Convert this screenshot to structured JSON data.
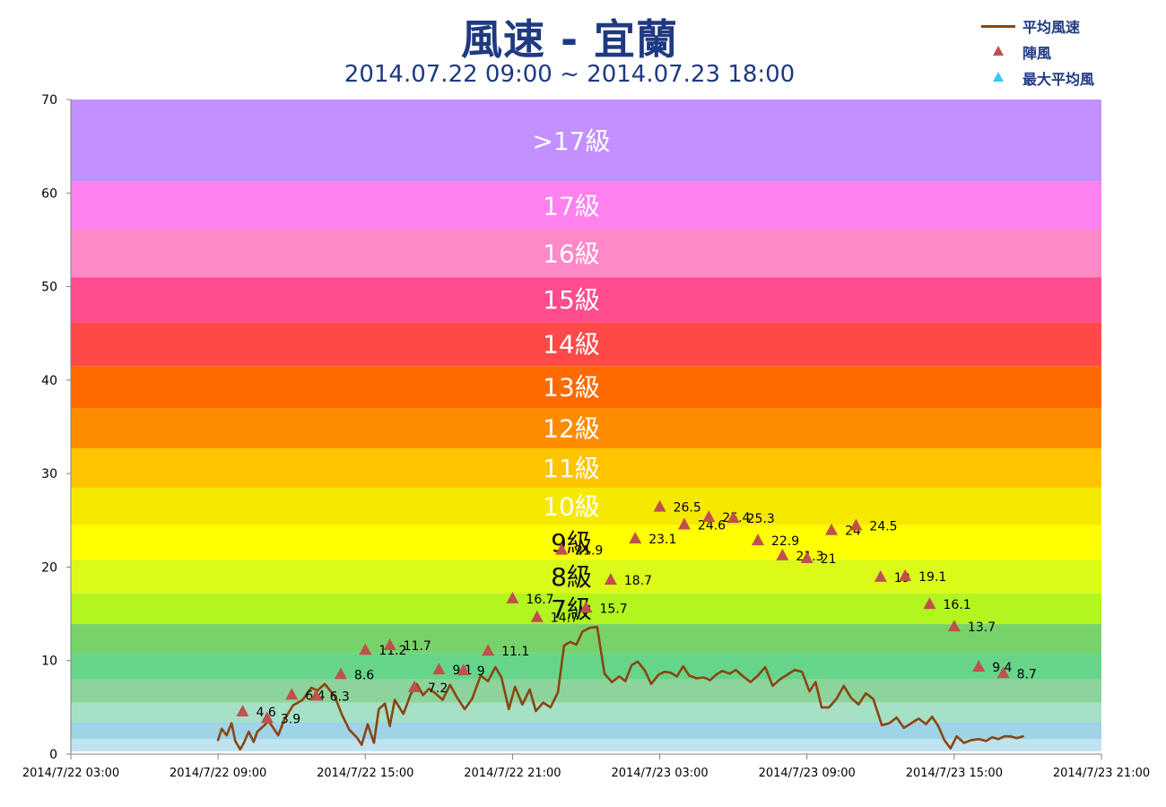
{
  "page": {
    "title": "風速 - 宜蘭",
    "subtitle": "2014.07.22 09:00 ~ 2014.07.23 18:00"
  },
  "legend": {
    "items": [
      {
        "label": "平均風速",
        "type": "line"
      },
      {
        "label": "陣風",
        "type": "triangle"
      },
      {
        "label": "最大平均風",
        "type": "triangle-cyan"
      }
    ]
  },
  "colors": {
    "avg_line": "#8b4513",
    "gust_marker": "#c0504d",
    "max_avg_marker": "#33ccee",
    "title": "#1f3a82"
  },
  "chart_data": {
    "type": "line",
    "x_axis": {
      "start_hour": 0,
      "end_hour": 42,
      "ticks": [
        {
          "hour": 0,
          "label": "2014/7/22 03:00"
        },
        {
          "hour": 6,
          "label": "2014/7/22 09:00"
        },
        {
          "hour": 12,
          "label": "2014/7/22 15:00"
        },
        {
          "hour": 18,
          "label": "2014/7/22 21:00"
        },
        {
          "hour": 24,
          "label": "2014/7/23 03:00"
        },
        {
          "hour": 30,
          "label": "2014/7/23 09:00"
        },
        {
          "hour": 36,
          "label": "2014/7/23 15:00"
        },
        {
          "hour": 42,
          "label": "2014/7/23 21:00"
        }
      ]
    },
    "y_axis": {
      "min": 0,
      "max": 70,
      "ticks": [
        0,
        10,
        20,
        30,
        40,
        50,
        60,
        70
      ]
    },
    "bands": [
      {
        "from": 0,
        "to": 0.3,
        "color": "#ffffff",
        "label": ""
      },
      {
        "from": 0.3,
        "to": 1.6,
        "color": "#bfe3ef",
        "label": ""
      },
      {
        "from": 1.6,
        "to": 3.4,
        "color": "#9fd3e6",
        "label": ""
      },
      {
        "from": 3.4,
        "to": 5.5,
        "color": "#a6e0c6",
        "label": ""
      },
      {
        "from": 5.5,
        "to": 8.0,
        "color": "#8cd39c",
        "label": ""
      },
      {
        "from": 8.0,
        "to": 10.8,
        "color": "#66d58a",
        "label": ""
      },
      {
        "from": 10.8,
        "to": 13.9,
        "color": "#78d26a",
        "label": ""
      },
      {
        "from": 13.9,
        "to": 17.2,
        "color": "#b2f51f",
        "label": "7級"
      },
      {
        "from": 17.2,
        "to": 20.8,
        "color": "#dcfa17",
        "label": "8級"
      },
      {
        "from": 20.8,
        "to": 24.5,
        "color": "#ffff00",
        "label": "9級"
      },
      {
        "from": 24.5,
        "to": 28.5,
        "color": "#f6e900",
        "label": "10級"
      },
      {
        "from": 28.5,
        "to": 32.7,
        "color": "#ffc400",
        "label": "11級"
      },
      {
        "from": 32.7,
        "to": 37.0,
        "color": "#ff8c00",
        "label": "12級"
      },
      {
        "from": 37.0,
        "to": 41.5,
        "color": "#ff6a00",
        "label": "13級"
      },
      {
        "from": 41.5,
        "to": 46.2,
        "color": "#ff4949",
        "label": "14級"
      },
      {
        "from": 46.2,
        "to": 51.0,
        "color": "#ff4c8e",
        "label": "15級"
      },
      {
        "from": 51.0,
        "to": 56.1,
        "color": "#ff88c7",
        "label": "16級"
      },
      {
        "from": 56.1,
        "to": 61.2,
        "color": "#ff80ef",
        "label": "17級"
      },
      {
        "from": 61.2,
        "to": 70.0,
        "color": "#c390ff",
        "label": ">17級"
      }
    ],
    "avg_series": {
      "name": "平均風速",
      "x": [
        6.0,
        6.15,
        6.35,
        6.55,
        6.7,
        6.9,
        7.05,
        7.25,
        7.45,
        7.6,
        7.85,
        8.05,
        8.2,
        8.45,
        8.7,
        9.05,
        9.45,
        9.8,
        10.05,
        10.35,
        10.75,
        11.05,
        11.35,
        11.65,
        11.85,
        12.1,
        12.35,
        12.55,
        12.8,
        13.0,
        13.2,
        13.55,
        13.85,
        14.1,
        14.35,
        14.6,
        14.85,
        15.15,
        15.45,
        15.75,
        16.05,
        16.35,
        16.7,
        17.0,
        17.3,
        17.55,
        17.85,
        18.1,
        18.4,
        18.7,
        18.95,
        19.25,
        19.55,
        19.85,
        20.1,
        20.35,
        20.6,
        20.85,
        21.15,
        21.45,
        21.75,
        22.05,
        22.35,
        22.6,
        22.85,
        23.1,
        23.4,
        23.65,
        23.95,
        24.2,
        24.45,
        24.7,
        24.95,
        25.2,
        25.5,
        25.8,
        26.05,
        26.3,
        26.55,
        26.85,
        27.1,
        27.4,
        27.7,
        28.0,
        28.3,
        28.6,
        28.9,
        29.2,
        29.5,
        29.8,
        30.1,
        30.35,
        30.6,
        30.9,
        31.2,
        31.5,
        31.8,
        32.1,
        32.4,
        32.7,
        33.05,
        33.35,
        33.65,
        33.95,
        34.25,
        34.55,
        34.85,
        35.1,
        35.35,
        35.6,
        35.85,
        36.1,
        36.4,
        36.7,
        37.0,
        37.3,
        37.55,
        37.8,
        38.05,
        38.3,
        38.55,
        38.8
      ],
      "y": [
        1.5,
        2.7,
        2.0,
        3.3,
        1.4,
        0.5,
        1.2,
        2.4,
        1.3,
        2.4,
        3.0,
        3.5,
        3.0,
        2.0,
        3.7,
        5.2,
        5.8,
        7.1,
        6.8,
        7.5,
        6.2,
        4.2,
        2.6,
        1.8,
        1.0,
        3.2,
        1.2,
        4.8,
        5.4,
        3.0,
        5.8,
        4.3,
        6.4,
        7.5,
        6.3,
        7.0,
        6.5,
        5.8,
        7.4,
        6.0,
        4.8,
        5.9,
        8.4,
        7.8,
        9.3,
        8.2,
        4.8,
        7.2,
        5.3,
        6.9,
        4.6,
        5.5,
        5.0,
        6.6,
        11.6,
        12.0,
        11.7,
        13.1,
        13.5,
        13.6,
        8.6,
        7.7,
        8.3,
        7.8,
        9.5,
        9.9,
        8.9,
        7.5,
        8.5,
        8.8,
        8.7,
        8.3,
        9.4,
        8.4,
        8.1,
        8.2,
        7.9,
        8.5,
        8.9,
        8.6,
        9.0,
        8.3,
        7.7,
        8.4,
        9.3,
        7.3,
        8.0,
        8.5,
        9.0,
        8.8,
        6.7,
        7.7,
        5.0,
        5.0,
        5.9,
        7.3,
        6.0,
        5.3,
        6.5,
        5.9,
        3.1,
        3.3,
        3.9,
        2.8,
        3.3,
        3.8,
        3.2,
        4.0,
        3.0,
        1.5,
        0.6,
        1.9,
        1.2,
        1.5,
        1.6,
        1.4,
        1.8,
        1.6,
        1.9,
        1.9,
        1.7,
        1.9
      ]
    },
    "gust_series": {
      "name": "陣風",
      "points": [
        {
          "x": 7.0,
          "y": 4.6,
          "label": "4.6"
        },
        {
          "x": 8.0,
          "y": 3.9,
          "label": "3.9"
        },
        {
          "x": 9.0,
          "y": 6.4,
          "label": "6.4"
        },
        {
          "x": 10.0,
          "y": 6.3,
          "label": "6.3"
        },
        {
          "x": 11.0,
          "y": 8.6,
          "label": "8.6"
        },
        {
          "x": 12.0,
          "y": 11.2,
          "label": "11.2"
        },
        {
          "x": 13.0,
          "y": 11.7,
          "label": "11.7"
        },
        {
          "x": 14.0,
          "y": 7.2,
          "label": "7.2"
        },
        {
          "x": 15.0,
          "y": 9.1,
          "label": "9.1"
        },
        {
          "x": 16.0,
          "y": 9.0,
          "label": "9"
        },
        {
          "x": 17.0,
          "y": 11.1,
          "label": "11.1"
        },
        {
          "x": 18.0,
          "y": 16.7,
          "label": "16.7"
        },
        {
          "x": 19.0,
          "y": 14.7,
          "label": "14.7"
        },
        {
          "x": 20.0,
          "y": 21.9,
          "label": "21.9"
        },
        {
          "x": 21.0,
          "y": 15.7,
          "label": "15.7"
        },
        {
          "x": 22.0,
          "y": 18.7,
          "label": "18.7"
        },
        {
          "x": 23.0,
          "y": 23.1,
          "label": "23.1"
        },
        {
          "x": 24.0,
          "y": 26.5,
          "label": "26.5"
        },
        {
          "x": 25.0,
          "y": 24.6,
          "label": "24.6"
        },
        {
          "x": 26.0,
          "y": 25.4,
          "label": "25.4"
        },
        {
          "x": 27.0,
          "y": 25.3,
          "label": "25.3"
        },
        {
          "x": 28.0,
          "y": 22.9,
          "label": "22.9"
        },
        {
          "x": 29.0,
          "y": 21.3,
          "label": "21.3"
        },
        {
          "x": 30.0,
          "y": 21.0,
          "label": "21"
        },
        {
          "x": 31.0,
          "y": 24.0,
          "label": "24"
        },
        {
          "x": 32.0,
          "y": 24.5,
          "label": "24.5"
        },
        {
          "x": 33.0,
          "y": 19.0,
          "label": "19"
        },
        {
          "x": 34.0,
          "y": 19.1,
          "label": "19.1"
        },
        {
          "x": 35.0,
          "y": 16.1,
          "label": "16.1"
        },
        {
          "x": 36.0,
          "y": 13.7,
          "label": "13.7"
        },
        {
          "x": 37.0,
          "y": 9.4,
          "label": "9.4"
        },
        {
          "x": 38.0,
          "y": 8.7,
          "label": "8.7"
        }
      ]
    }
  }
}
